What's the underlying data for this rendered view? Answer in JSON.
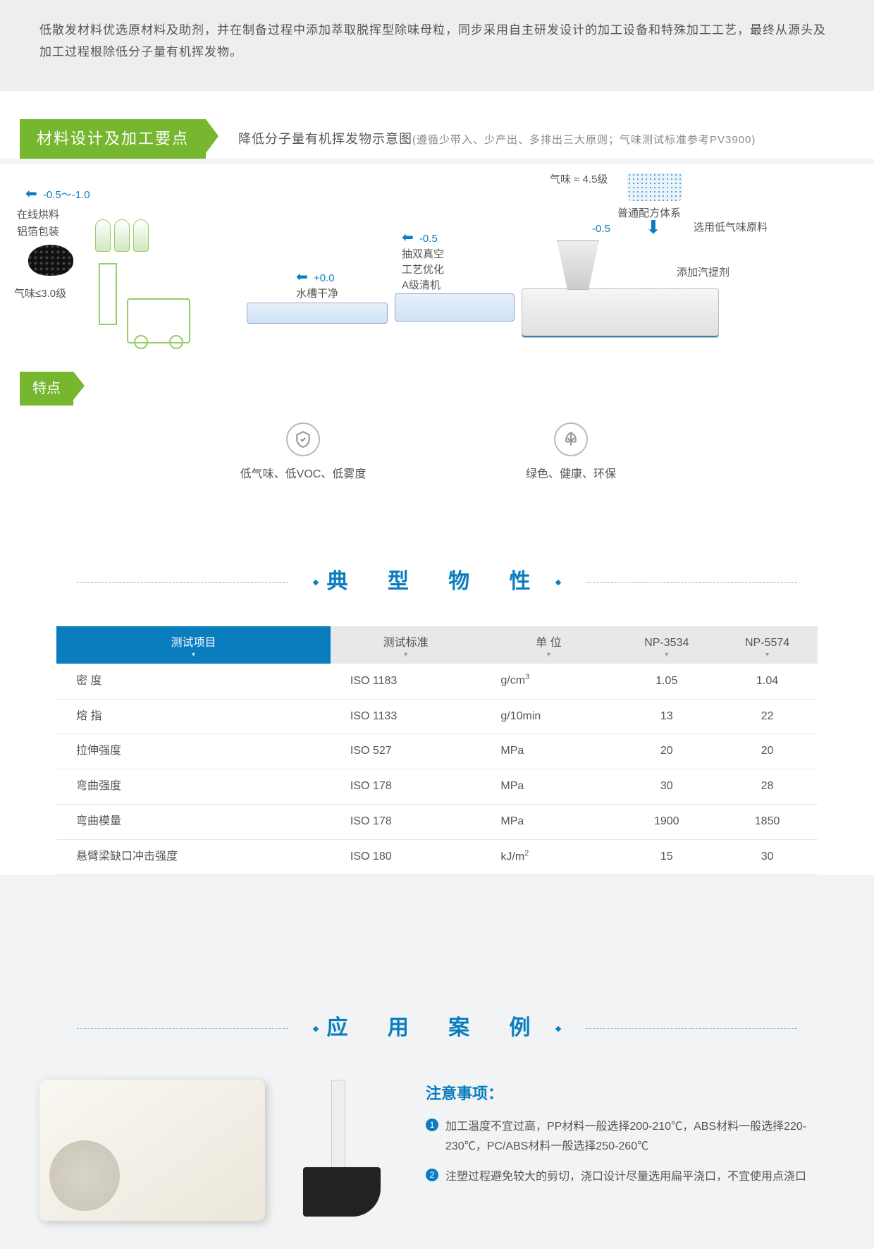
{
  "intro": "低散发材料优选原材料及助剂，并在制备过程中添加萃取脱挥型除味母粒，同步采用自主研发设计的加工设备和特殊加工工艺，最终从源头及加工过程根除低分子量有机挥发物。",
  "section1": {
    "label": "材料设计及加工要点",
    "desc_main": "降低分子量有机挥发物示意图",
    "desc_sub": "(遵循少带入、少产出、多排出三大原则；气味测试标准参考PV3900)"
  },
  "diagram": {
    "arrow_val1": "-0.5～-1.0",
    "label1a": "在线烘料",
    "label1b": "铝箔包装",
    "label2": "气味≤3.0级",
    "tank_val": "+0.0",
    "tank_label": "水槽干净",
    "arrow_val2": "-0.5",
    "ext_a": "抽双真空",
    "ext_b": "工艺优化",
    "ext_c": "A级清机",
    "top_label": "气味 ≈ 4.5级",
    "formula_label": "普通配方体系",
    "arrow_val3": "-0.5",
    "raw_label": "选用低气味原料",
    "agent_label": "添加汽提剂"
  },
  "features_label": "特点",
  "features": [
    {
      "icon": "shield",
      "text": "低气味、低VOC、低雾度"
    },
    {
      "icon": "leaf",
      "text": "绿色、健康、环保"
    }
  ],
  "props_header": "典 型 物 性",
  "table": {
    "columns": [
      "测试项目",
      "测试标准",
      "单 位",
      "NP-3534",
      "NP-5574"
    ],
    "active_col": 0,
    "rows": [
      [
        "密 度",
        "ISO 1183",
        "g/cm³",
        "1.05",
        "1.04"
      ],
      [
        "熔 指",
        "ISO 1133",
        "g/10min",
        "13",
        "22"
      ],
      [
        "拉伸强度",
        "ISO 527",
        "MPa",
        "20",
        "20"
      ],
      [
        "弯曲强度",
        "ISO 178",
        "MPa",
        "30",
        "28"
      ],
      [
        "弯曲模量",
        "ISO 178",
        "MPa",
        "1900",
        "1850"
      ],
      [
        "悬臂梁缺口冲击强度",
        "ISO 180",
        "kJ/m²",
        "15",
        "30"
      ]
    ]
  },
  "app_header": "应 用 案 例",
  "notes": {
    "title": "注意事项：",
    "items": [
      "加工温度不宜过高，PP材料一般选择200-210℃，ABS材料一般选择220-230℃，PC/ABS材料一般选择250-260℃",
      "注塑过程避免较大的剪切，浇口设计尽量选用扁平浇口，不宜使用点浇口"
    ]
  },
  "colors": {
    "green": "#76b72f",
    "blue": "#0a7dbf",
    "bg_grey": "#f2f3f4",
    "header_grey": "#e7e8e9",
    "text": "#555555"
  }
}
